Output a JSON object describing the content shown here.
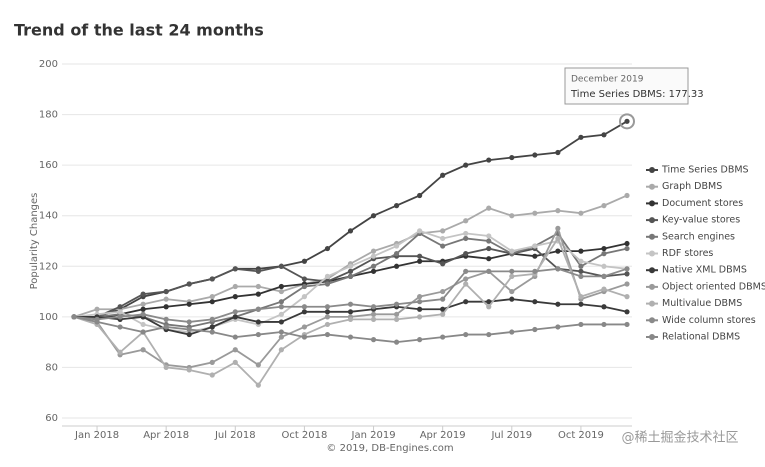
{
  "chart_data": {
    "type": "line",
    "title": "Trend of the last 24 months",
    "y_label": "Popularity Changes",
    "source": "© 2019, DB-Engines.com",
    "watermark": "@稀土掘金技术社区",
    "tooltip": {
      "title": "December 2019",
      "text": "Time Series DBMS: 177.33"
    },
    "categories": [
      null,
      "Jan 2018",
      null,
      null,
      "Apr 2018",
      null,
      null,
      "Jul 2018",
      null,
      null,
      "Oct 2018",
      null,
      null,
      "Jan 2019",
      null,
      null,
      "Apr 2019",
      null,
      null,
      "Jul 2019",
      null,
      null,
      "Oct 2019",
      null,
      null
    ],
    "ylim": [
      60,
      200
    ],
    "yticks": [
      60,
      80,
      100,
      120,
      140,
      160,
      180,
      200
    ],
    "legend": "right",
    "series": [
      {
        "name": "Time Series DBMS",
        "color": "#444444",
        "values": [
          100,
          100,
          103,
          108,
          110,
          113,
          115,
          119,
          119,
          120,
          122,
          127,
          134,
          140,
          144,
          148,
          156,
          160,
          162,
          163,
          164,
          165,
          171,
          172,
          177.33
        ]
      },
      {
        "name": "Graph DBMS",
        "color": "#aaaaaa",
        "values": [
          100,
          103,
          103,
          105,
          107,
          106,
          108,
          112,
          112,
          110,
          113,
          115,
          121,
          126,
          129,
          133,
          134,
          138,
          143,
          140,
          141,
          142,
          141,
          144,
          148
        ]
      },
      {
        "name": "Document stores",
        "color": "#333333",
        "values": [
          100,
          99,
          101,
          103,
          104,
          105,
          106,
          108,
          109,
          112,
          113,
          114,
          116,
          118,
          120,
          122,
          122,
          124,
          123,
          125,
          124,
          126,
          126,
          127,
          129
        ]
      },
      {
        "name": "Key-value stores",
        "color": "#555555",
        "values": [
          100,
          100,
          104,
          109,
          110,
          113,
          115,
          119,
          118,
          120,
          115,
          114,
          118,
          123,
          124,
          124,
          121,
          125,
          127,
          125,
          127,
          119,
          118,
          116,
          117
        ]
      },
      {
        "name": "Search engines",
        "color": "#777777",
        "values": [
          100,
          100,
          101,
          100,
          97,
          96,
          98,
          100,
          103,
          106,
          112,
          113,
          116,
          120,
          125,
          133,
          128,
          131,
          130,
          125,
          128,
          133,
          120,
          125,
          127
        ]
      },
      {
        "name": "RDF stores",
        "color": "#c4c4c4",
        "values": [
          100,
          101,
          102,
          97,
          95,
          94,
          96,
          99,
          97,
          101,
          108,
          116,
          120,
          124,
          128,
          134,
          131,
          133,
          132,
          126,
          128,
          130,
          122,
          120,
          119
        ]
      },
      {
        "name": "Native XML DBMS",
        "color": "#3a3a3a",
        "values": [
          100,
          100,
          99,
          100,
          95,
          93,
          96,
          100,
          98,
          98,
          102,
          102,
          102,
          103,
          104,
          103,
          103,
          106,
          106,
          107,
          106,
          105,
          105,
          104,
          102
        ]
      },
      {
        "name": "Object oriented DBMS",
        "color": "#9a9a9a",
        "values": [
          100,
          98,
          85,
          87,
          81,
          80,
          82,
          87,
          81,
          92,
          96,
          100,
          100,
          101,
          101,
          108,
          110,
          115,
          118,
          110,
          116,
          135,
          107,
          110,
          113
        ]
      },
      {
        "name": "Multivalue DBMS",
        "color": "#b0b0b0",
        "values": [
          100,
          97,
          86,
          94,
          80,
          79,
          77,
          82,
          73,
          87,
          93,
          97,
          99,
          99,
          99,
          100,
          101,
          113,
          104,
          116,
          117,
          131,
          108,
          111,
          108
        ]
      },
      {
        "name": "Wide column stores",
        "color": "#8a8a8a",
        "values": [
          100,
          99,
          100,
          101,
          99,
          98,
          99,
          102,
          103,
          104,
          104,
          104,
          105,
          104,
          105,
          106,
          107,
          118,
          118,
          118,
          118,
          119,
          116,
          116,
          119
        ]
      },
      {
        "name": "Relational DBMS",
        "color": "#888888",
        "values": [
          100,
          98,
          96,
          94,
          96,
          95,
          94,
          92,
          93,
          94,
          92,
          93,
          92,
          91,
          90,
          91,
          92,
          93,
          93,
          94,
          95,
          96,
          97,
          97,
          97
        ]
      }
    ]
  }
}
